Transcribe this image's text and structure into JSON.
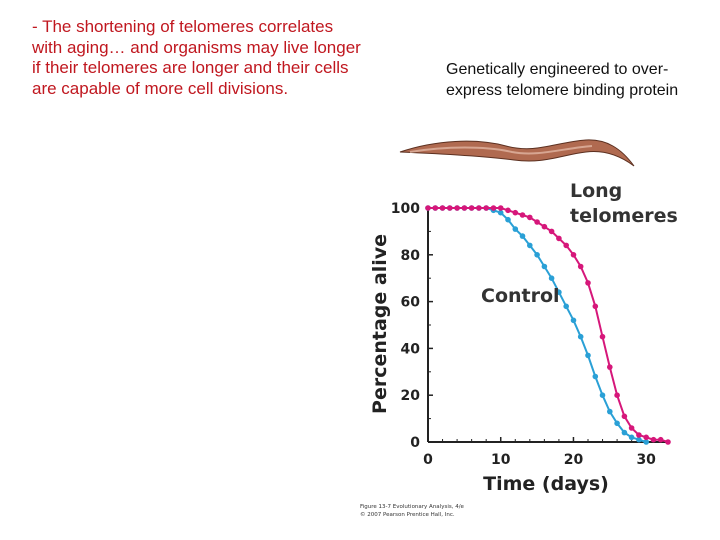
{
  "bullet_text": "- The shortening of telomeres correlates with aging… and organisms may live longer if their telomeres are longer and their cells are capable of more cell divisions.",
  "caption_text": "Genetically engineered to over-express telomere binding protein",
  "colors": {
    "bullet": "#c0171f",
    "long_series": "#d6177a",
    "control_series": "#2aa0d6",
    "axis": "#222222",
    "worm_body": "#b06a50"
  },
  "chart_data": {
    "type": "line",
    "xlabel": "Time (days)",
    "ylabel": "Percentage alive",
    "xlim": [
      0,
      33
    ],
    "ylim": [
      0,
      100
    ],
    "x_ticks": [
      0,
      10,
      20,
      30
    ],
    "y_ticks": [
      0,
      20,
      40,
      60,
      80,
      100
    ],
    "series": [
      {
        "name": "Long telomeres",
        "label_lines": [
          "Long",
          "telomeres"
        ],
        "x": [
          0,
          1,
          2,
          3,
          4,
          5,
          6,
          7,
          8,
          9,
          10,
          11,
          12,
          13,
          14,
          15,
          16,
          17,
          18,
          19,
          20,
          21,
          22,
          23,
          24,
          25,
          26,
          27,
          28,
          29,
          30,
          31,
          32,
          33
        ],
        "y": [
          100,
          100,
          100,
          100,
          100,
          100,
          100,
          100,
          100,
          100,
          100,
          99,
          98,
          97,
          96,
          94,
          92,
          90,
          87,
          84,
          80,
          75,
          68,
          58,
          45,
          32,
          20,
          11,
          6,
          3,
          2,
          1,
          1,
          0
        ]
      },
      {
        "name": "Control",
        "label_lines": [
          "Control"
        ],
        "x": [
          0,
          1,
          2,
          3,
          4,
          5,
          6,
          7,
          8,
          9,
          10,
          11,
          12,
          13,
          14,
          15,
          16,
          17,
          18,
          19,
          20,
          21,
          22,
          23,
          24,
          25,
          26,
          27,
          28,
          29,
          30
        ],
        "y": [
          100,
          100,
          100,
          100,
          100,
          100,
          100,
          100,
          100,
          99,
          98,
          95,
          91,
          88,
          84,
          80,
          75,
          70,
          64,
          58,
          52,
          45,
          37,
          28,
          20,
          13,
          8,
          4,
          2,
          1,
          0
        ]
      }
    ]
  },
  "credit": {
    "line1": "Figure 13-7  Evolutionary Analysis, 4/e",
    "line2": "© 2007 Pearson Prentice Hall, Inc."
  }
}
